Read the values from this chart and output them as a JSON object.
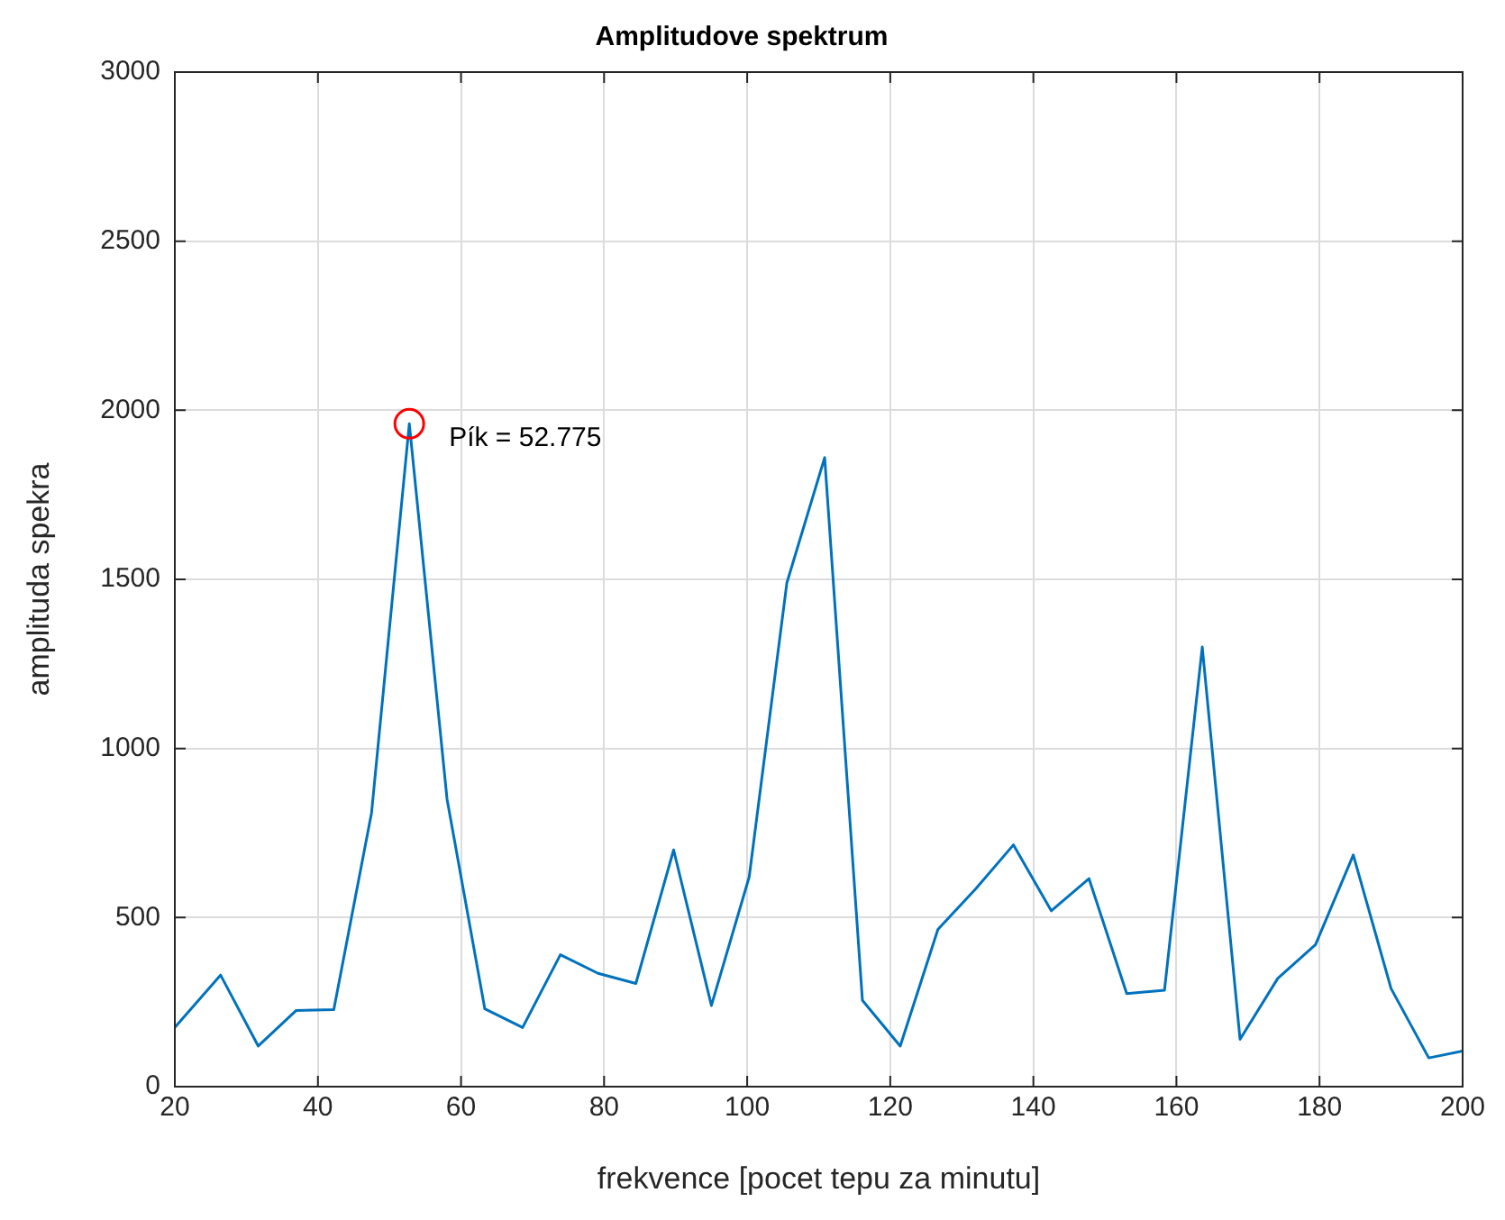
{
  "chart_data": {
    "type": "line",
    "title": "Amplitudove spektrum",
    "xlabel": "frekvence [pocet tepu za minutu]",
    "ylabel": "amplituda spekra",
    "xlim": [
      20,
      200
    ],
    "xticks": [
      20,
      40,
      60,
      80,
      100,
      120,
      140,
      160,
      180,
      200
    ],
    "ylim": [
      0,
      3000
    ],
    "yticks": [
      0,
      500,
      1000,
      1500,
      2000,
      2500,
      3000
    ],
    "grid": true,
    "marker": "none",
    "line_style": "solid",
    "series": [
      {
        "color": "#0072bd",
        "x": [
          20,
          26.39,
          31.66,
          36.94,
          42.22,
          47.5,
          52.775,
          58.05,
          63.33,
          68.61,
          73.89,
          79.16,
          84.44,
          89.72,
          95.0,
          100.28,
          105.55,
          110.83,
          116.11,
          121.39,
          126.66,
          131.94,
          137.22,
          142.5,
          147.78,
          153.05,
          158.33,
          163.61,
          168.89,
          174.16,
          179.44,
          184.72,
          190.0,
          195.27,
          200
        ],
        "values": [
          175,
          330,
          120,
          225,
          228,
          810,
          1960,
          850,
          230,
          175,
          390,
          335,
          305,
          700,
          240,
          620,
          1490,
          1860,
          255,
          120,
          465,
          585,
          715,
          520,
          615,
          275,
          285,
          1300,
          140,
          320,
          420,
          685,
          290,
          85,
          105
        ]
      },
      {
        "type": "scatter",
        "marker": "circle",
        "color": "#ff0000",
        "x": [
          52.775
        ],
        "values": [
          1960
        ]
      }
    ],
    "annotations": [
      {
        "text": "Pík = 52.775",
        "x": 52.775,
        "y": 1960
      }
    ]
  }
}
